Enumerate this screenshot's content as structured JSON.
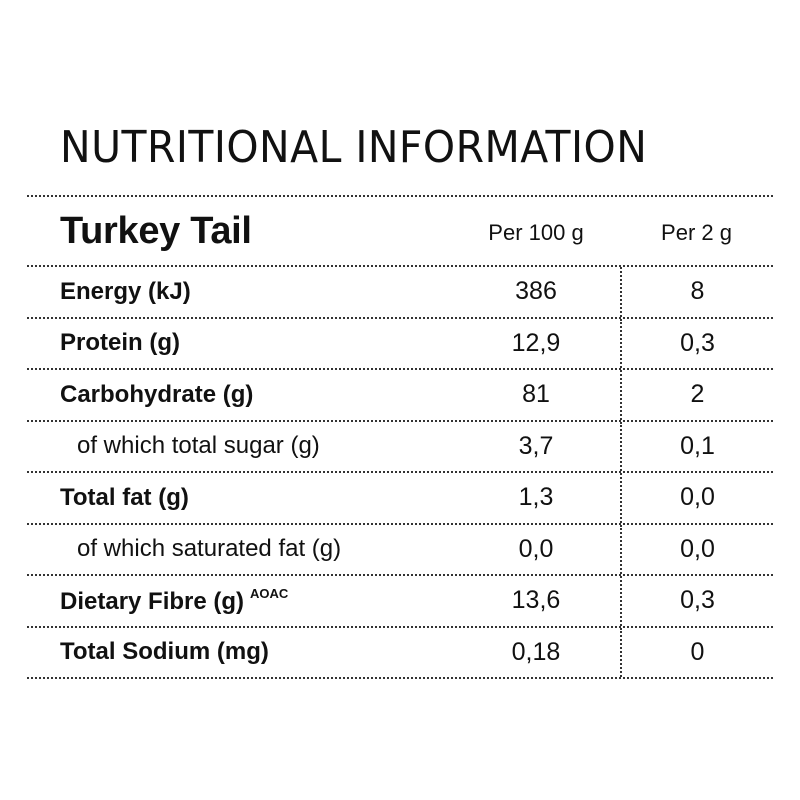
{
  "title": "NUTRITIONAL INFORMATION",
  "product": "Turkey Tail",
  "columns": {
    "per_100": "Per 100 g",
    "per_serving": "Per 2 g"
  },
  "rows": [
    {
      "label": "Energy (kJ)",
      "per_100": "386",
      "per_serving": "8"
    },
    {
      "label": "Protein (g)",
      "per_100": "12,9",
      "per_serving": "0,3"
    },
    {
      "label": "Carbohydrate (g)",
      "per_100": "81",
      "per_serving": "2"
    },
    {
      "label": "of which total sugar (g)",
      "per_100": "3,7",
      "per_serving": "0,1"
    },
    {
      "label": "Total fat (g)",
      "per_100": "1,3",
      "per_serving": "0,0"
    },
    {
      "label": "of which saturated fat (g)",
      "per_100": "0,0",
      "per_serving": "0,0"
    },
    {
      "label": "Dietary Fibre (g)",
      "superscript": "AOAC",
      "per_100": "13,6",
      "per_serving": "0,3"
    },
    {
      "label": "Total Sodium (mg)",
      "per_100": "0,18",
      "per_serving": "0"
    }
  ]
}
